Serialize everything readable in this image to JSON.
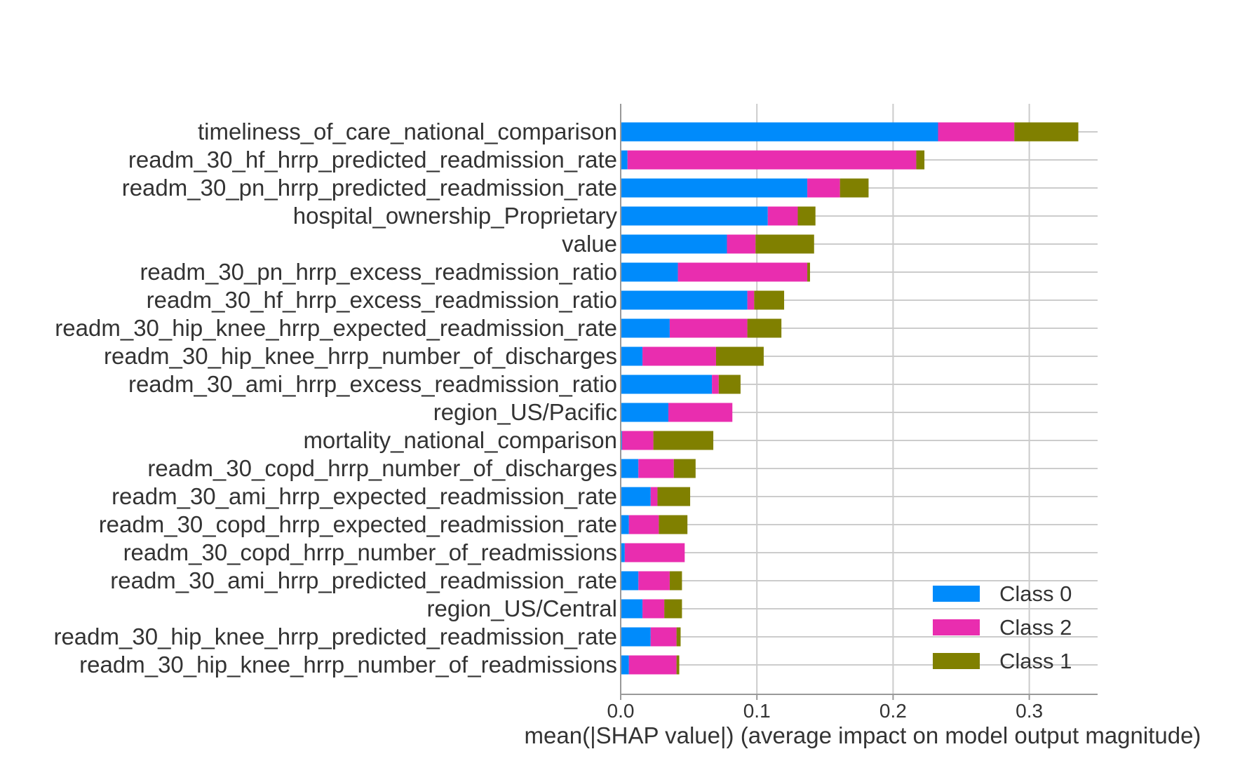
{
  "chart_data": {
    "type": "bar",
    "orientation": "horizontal",
    "stacked": true,
    "xlabel": "mean(|SHAP value|) (average impact on model output magnitude)",
    "ylabel": "",
    "xlim": [
      0,
      0.35
    ],
    "xticks": [
      0.0,
      0.1,
      0.2,
      0.3
    ],
    "xtick_labels": [
      "0.0",
      "0.1",
      "0.2",
      "0.3"
    ],
    "grid": true,
    "legend_position": "lower-right",
    "categories": [
      "timeliness_of_care_national_comparison",
      "readm_30_hf_hrrp_predicted_readmission_rate",
      "readm_30_pn_hrrp_predicted_readmission_rate",
      "hospital_ownership_Proprietary",
      "value",
      "readm_30_pn_hrrp_excess_readmission_ratio",
      "readm_30_hf_hrrp_excess_readmission_ratio",
      "readm_30_hip_knee_hrrp_expected_readmission_rate",
      "readm_30_hip_knee_hrrp_number_of_discharges",
      "readm_30_ami_hrrp_excess_readmission_ratio",
      "region_US/Pacific",
      "mortality_national_comparison",
      "readm_30_copd_hrrp_number_of_discharges",
      "readm_30_ami_hrrp_expected_readmission_rate",
      "readm_30_copd_hrrp_expected_readmission_rate",
      "readm_30_copd_hrrp_number_of_readmissions",
      "readm_30_ami_hrrp_predicted_readmission_rate",
      "region_US/Central",
      "readm_30_hip_knee_hrrp_predicted_readmission_rate",
      "readm_30_hip_knee_hrrp_number_of_readmissions"
    ],
    "series": [
      {
        "name": "Class 0",
        "color": "#008bfb",
        "values": [
          0.233,
          0.005,
          0.137,
          0.108,
          0.078,
          0.042,
          0.093,
          0.036,
          0.016,
          0.067,
          0.035,
          0.001,
          0.013,
          0.022,
          0.006,
          0.003,
          0.013,
          0.016,
          0.022,
          0.006
        ]
      },
      {
        "name": "Class 2",
        "color": "#e92daf",
        "values": [
          0.056,
          0.212,
          0.024,
          0.022,
          0.021,
          0.095,
          0.005,
          0.057,
          0.054,
          0.005,
          0.047,
          0.023,
          0.026,
          0.005,
          0.022,
          0.044,
          0.023,
          0.016,
          0.019,
          0.035
        ]
      },
      {
        "name": "Class 1",
        "color": "#808000",
        "values": [
          0.047,
          0.006,
          0.021,
          0.013,
          0.043,
          0.002,
          0.022,
          0.025,
          0.035,
          0.016,
          0.0,
          0.044,
          0.016,
          0.024,
          0.021,
          0.0,
          0.009,
          0.013,
          0.003,
          0.002
        ]
      }
    ],
    "legend_order": [
      "Class 0",
      "Class 2",
      "Class 1"
    ]
  }
}
